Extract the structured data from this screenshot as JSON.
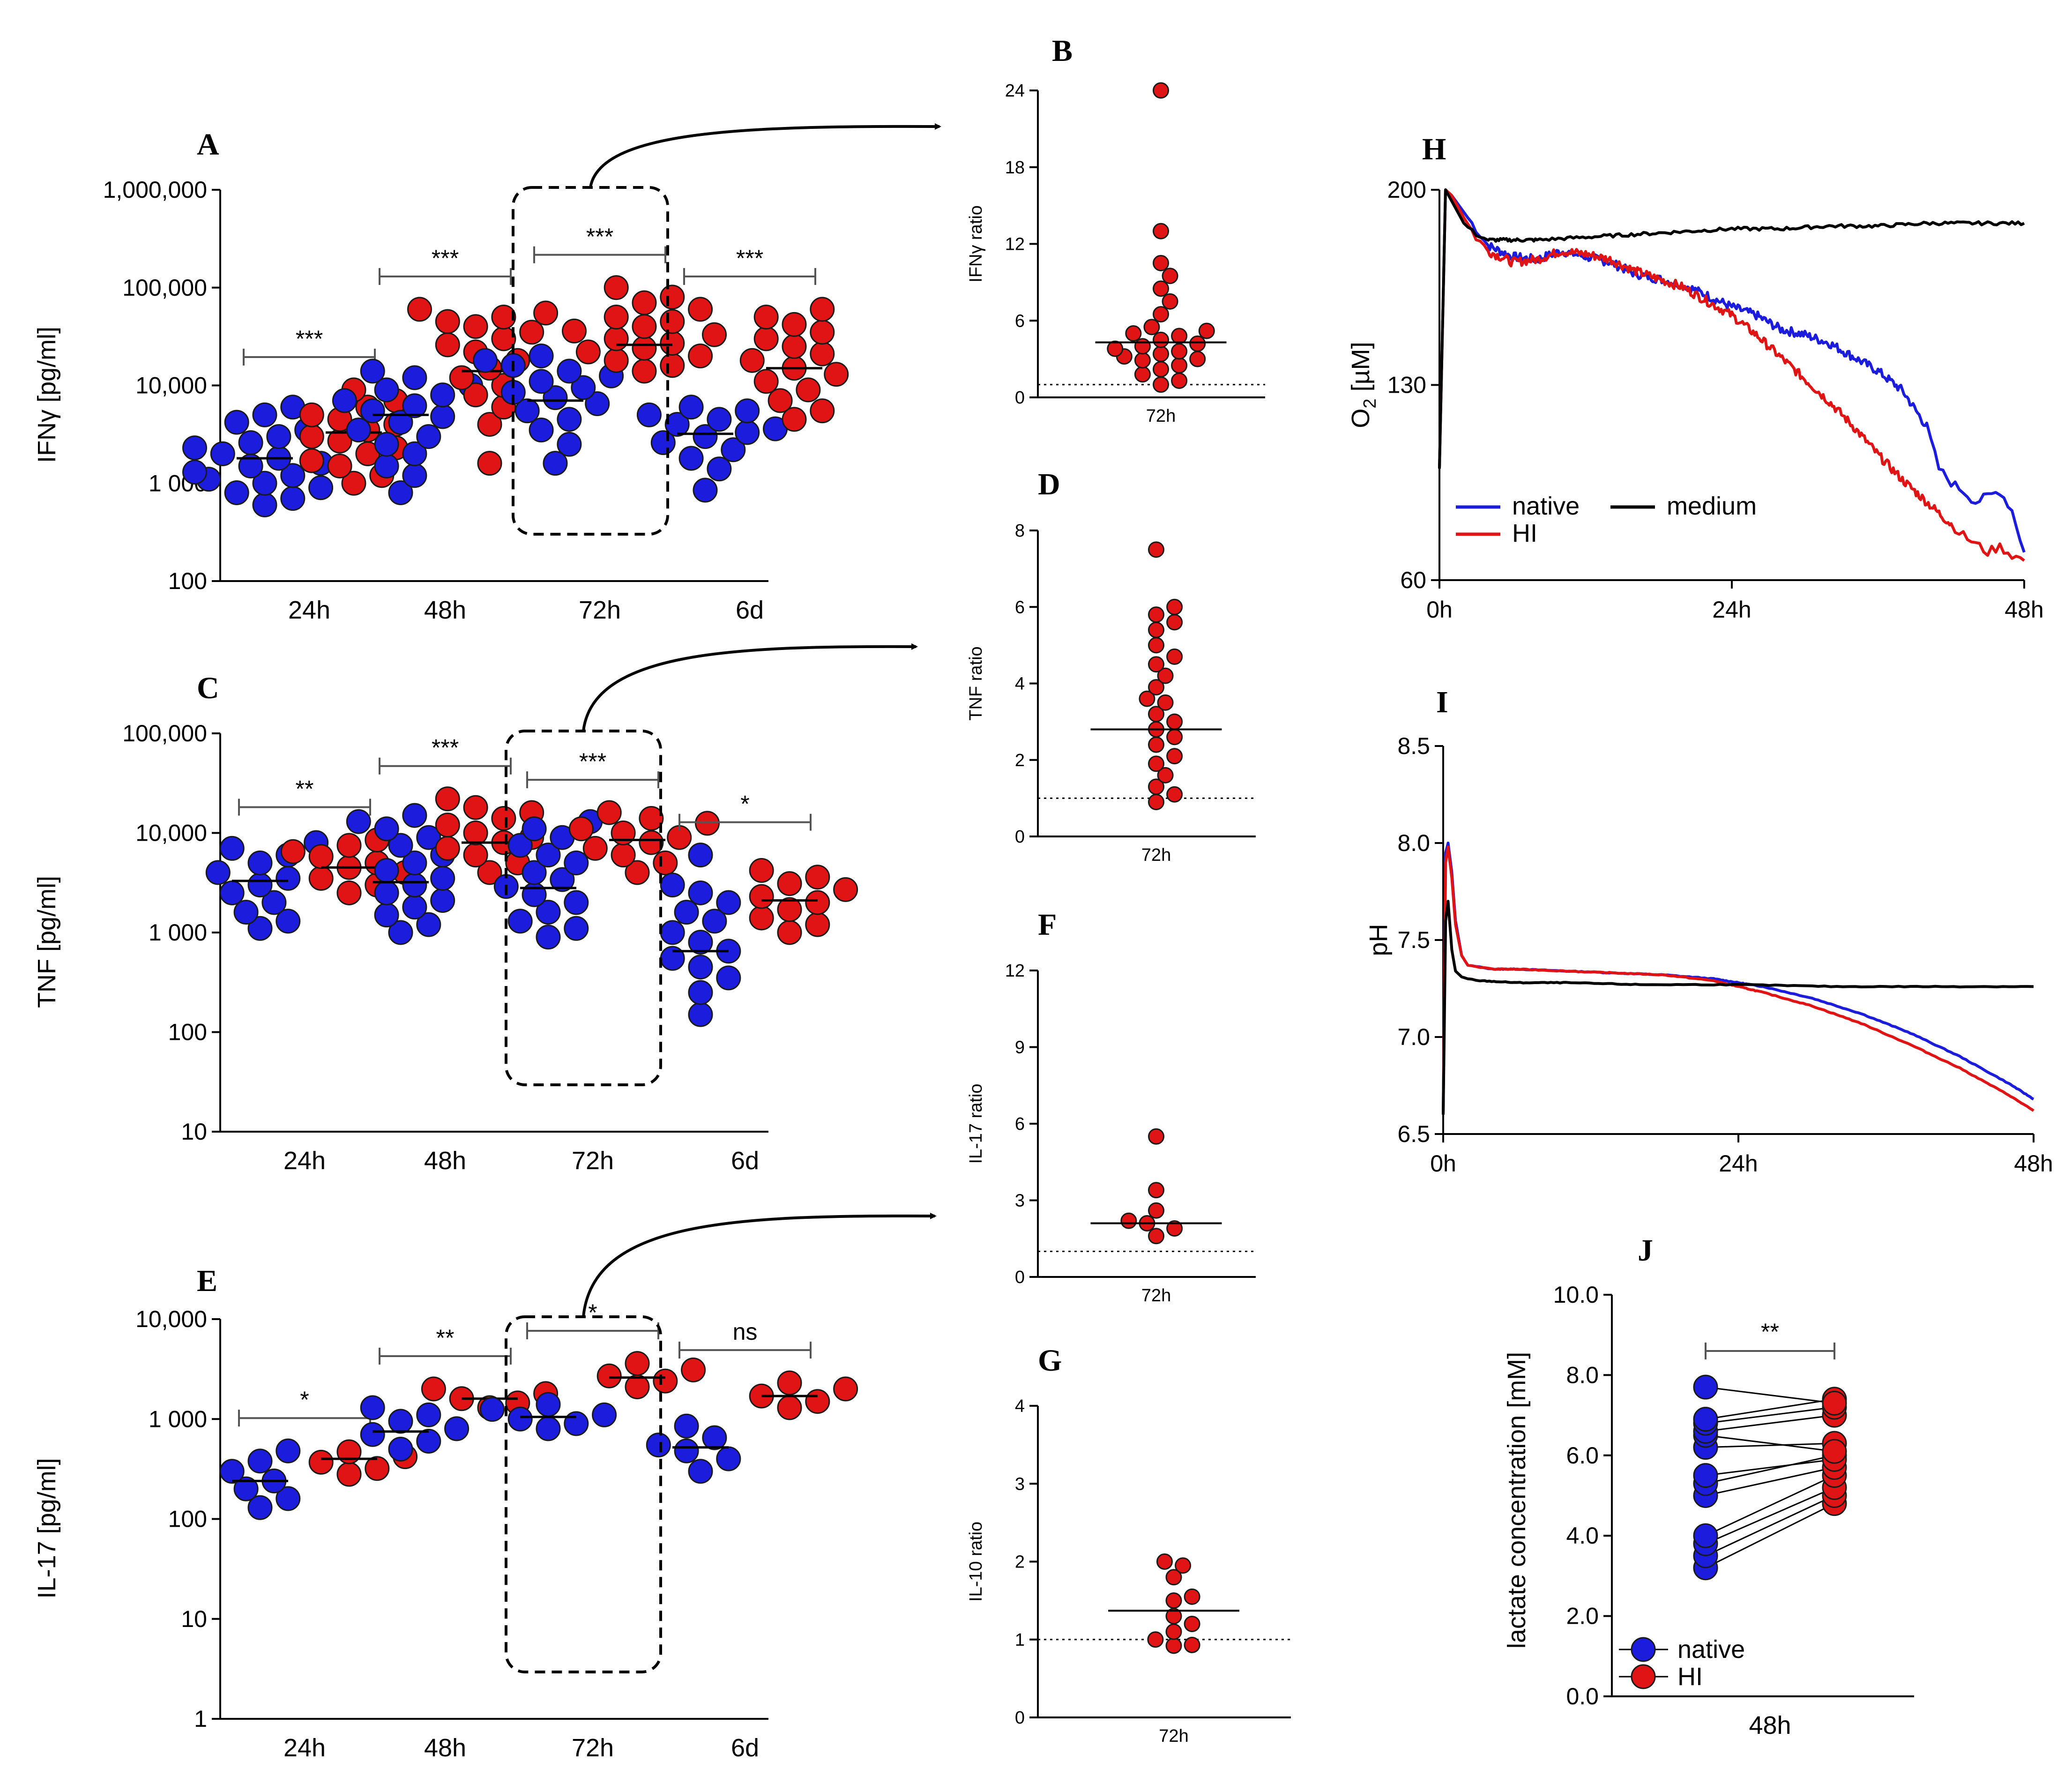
{
  "figure": {
    "colors": {
      "native": "#1c1cdc",
      "HI": "#e01414",
      "medium": "#000000",
      "dot_edge": "#1a1a1a"
    }
  },
  "chart_data": [
    {
      "id": "A",
      "panel_label": "A",
      "type": "scatter",
      "scale": "log",
      "ylabel": "IFNγ [pg/ml]",
      "ylim": [
        100,
        1000000
      ],
      "yticks": [
        100,
        1000,
        10000,
        100000,
        1000000
      ],
      "ytick_labels": [
        "100",
        "1 000",
        "10,000",
        "100,000",
        "1,000,000"
      ],
      "categories": [
        "24h",
        "48h",
        "72h",
        "6d"
      ],
      "series": [
        {
          "name": "native",
          "medians": [
            1800,
            5000,
            7000,
            3200
          ],
          "values": [
            [
              600,
              700,
              800,
              900,
              1000,
              1100,
              1200,
              1300,
              1500,
              1600,
              1800,
              2000,
              2300,
              2600,
              3000,
              3500,
              4200,
              5000,
              6000
            ],
            [
              800,
              1200,
              1500,
              2000,
              2500,
              3000,
              3500,
              4200,
              4800,
              5500,
              6200,
              7000,
              8000,
              9000,
              10000,
              12000,
              14000
            ],
            [
              1600,
              2500,
              3500,
              4500,
              5500,
              6500,
              7500,
              8500,
              9500,
              11000,
              12500,
              14000,
              16000,
              18000,
              20000
            ],
            [
              850,
              1400,
              1800,
              2200,
              2600,
              3000,
              3300,
              3600,
              4000,
              4500,
              5000,
              5500,
              6000
            ]
          ]
        },
        {
          "name": "HI",
          "medians": [
            3300,
            14000,
            26000,
            15000
          ],
          "values": [
            [
              1000,
              1200,
              1500,
              1700,
              2000,
              2300,
              2700,
              3000,
              3500,
              4000,
              4500,
              5000,
              6000,
              7000,
              9000
            ],
            [
              1600,
              4000,
              6000,
              8000,
              10000,
              12000,
              15000,
              18000,
              22000,
              26000,
              30000,
              35000,
              40000,
              45000,
              50000,
              55000,
              60000
            ],
            [
              14000,
              16000,
              18000,
              20000,
              22000,
              24000,
              27000,
              30000,
              33000,
              36000,
              40000,
              45000,
              50000,
              60000,
              70000,
              80000,
              100000
            ],
            [
              4500,
              5500,
              7000,
              9000,
              11000,
              13000,
              15000,
              18000,
              21000,
              25000,
              30000,
              35000,
              42000,
              50000,
              60000
            ]
          ]
        }
      ],
      "significance": [
        "***",
        "***",
        "***",
        "***"
      ]
    },
    {
      "id": "B",
      "panel_label": "B",
      "type": "scatter",
      "scale": "linear",
      "ylabel": "IFNγ ratio",
      "ylim": [
        0,
        24
      ],
      "yticks": [
        0,
        6,
        12,
        18,
        24
      ],
      "ytick_labels": [
        "0",
        "6",
        "12",
        "18",
        "24"
      ],
      "categories": [
        "72h"
      ],
      "median": 4.3,
      "reference": 1,
      "values": [
        1.0,
        1.3,
        1.8,
        2.2,
        2.5,
        2.9,
        3.0,
        3.2,
        3.4,
        3.6,
        3.8,
        4.0,
        4.2,
        4.5,
        4.8,
        5.0,
        5.2,
        5.5,
        6.5,
        7.5,
        8.5,
        9.5,
        10.5,
        13.0,
        24.0
      ]
    },
    {
      "id": "C",
      "panel_label": "C",
      "type": "scatter",
      "scale": "log",
      "ylabel": "TNF [pg/ml]",
      "ylim": [
        10,
        100000
      ],
      "yticks": [
        10,
        100,
        1000,
        10000,
        100000
      ],
      "ytick_labels": [
        "10",
        "100",
        "1 000",
        "10,000",
        "100,000"
      ],
      "categories": [
        "24h",
        "48h",
        "72h",
        "6d"
      ],
      "series": [
        {
          "name": "native",
          "medians": [
            3300,
            3200,
            2800,
            650
          ],
          "values": [
            [
              1100,
              1300,
              1600,
              2000,
              2500,
              3000,
              3500,
              4000,
              5000,
              6000,
              7000,
              8000
            ],
            [
              1000,
              1200,
              1500,
              1800,
              2100,
              2500,
              3000,
              3500,
              4200,
              5000,
              6000,
              7500,
              9000,
              11000,
              13000,
              15000
            ],
            [
              900,
              1100,
              1300,
              1600,
              2000,
              2400,
              2900,
              3400,
              4000,
              5000,
              6000,
              7500,
              9000,
              11000,
              13000
            ],
            [
              150,
              250,
              350,
              450,
              550,
              650,
              800,
              1000,
              1300,
              1600,
              2000,
              2500,
              3000,
              6000
            ]
          ]
        },
        {
          "name": "HI",
          "medians": [
            4500,
            8000,
            8500,
            2100
          ],
          "values": [
            [
              2500,
              3000,
              3500,
              4000,
              4500,
              5000,
              5800,
              6500,
              7500,
              8500
            ],
            [
              4000,
              5000,
              6000,
              7000,
              8000,
              9000,
              10000,
              12000,
              14000,
              16000,
              18000,
              22000
            ],
            [
              4000,
              5000,
              6000,
              7000,
              8000,
              9000,
              10000,
              11000,
              12500,
              14000,
              16000
            ],
            [
              1000,
              1200,
              1400,
              1700,
              2000,
              2300,
              2700,
              3100,
              3600,
              4200
            ]
          ]
        }
      ],
      "significance": [
        "**",
        "***",
        "***",
        "*"
      ]
    },
    {
      "id": "D",
      "panel_label": "D",
      "type": "scatter",
      "scale": "linear",
      "ylabel": "TNF ratio",
      "ylim": [
        0,
        8
      ],
      "yticks": [
        0,
        2,
        4,
        6,
        8
      ],
      "ytick_labels": [
        "0",
        "2",
        "4",
        "6",
        "8"
      ],
      "categories": [
        "72h"
      ],
      "median": 2.8,
      "reference": 1,
      "values": [
        0.9,
        1.1,
        1.3,
        1.6,
        1.9,
        2.1,
        2.4,
        2.6,
        2.8,
        3.0,
        3.2,
        3.5,
        3.6,
        3.9,
        4.2,
        4.5,
        4.7,
        5.0,
        5.4,
        5.6,
        5.8,
        6.0,
        7.5
      ]
    },
    {
      "id": "E",
      "panel_label": "E",
      "type": "scatter",
      "scale": "log",
      "ylabel": "IL-17 [pg/ml]",
      "ylim": [
        1,
        10000
      ],
      "yticks": [
        1,
        10,
        100,
        1000,
        10000
      ],
      "ytick_labels": [
        "1",
        "10",
        "100",
        "1 000",
        "10,000"
      ],
      "categories": [
        "24h",
        "48h",
        "72h",
        "6d"
      ],
      "series": [
        {
          "name": "native",
          "medians": [
            240,
            750,
            1050,
            520
          ],
          "values": [
            [
              130,
              160,
              200,
              240,
              300,
              380,
              480
            ],
            [
              500,
              600,
              700,
              800,
              950,
              1100,
              1300
            ],
            [
              800,
              900,
              1000,
              1100,
              1250,
              1400
            ],
            [
              300,
              400,
              480,
              550,
              650,
              850
            ]
          ]
        },
        {
          "name": "HI",
          "medians": [
            400,
            1600,
            2600,
            1700
          ],
          "values": [
            [
              280,
              320,
              370,
              420,
              470
            ],
            [
              1300,
              1450,
              1600,
              1800,
              2000
            ],
            [
              2100,
              2400,
              2700,
              3100,
              3600
            ],
            [
              1300,
              1500,
              1700,
              2000,
              2300
            ]
          ]
        }
      ],
      "significance": [
        "*",
        "**",
        "*",
        "ns"
      ]
    },
    {
      "id": "F",
      "panel_label": "F",
      "type": "scatter",
      "scale": "linear",
      "ylabel": "IL-17 ratio",
      "ylim": [
        0,
        12
      ],
      "yticks": [
        0,
        3,
        6,
        9,
        12
      ],
      "ytick_labels": [
        "0",
        "3",
        "6",
        "9",
        "12"
      ],
      "categories": [
        "72h"
      ],
      "median": 2.1,
      "reference": 1,
      "values": [
        1.6,
        1.9,
        2.1,
        2.2,
        2.6,
        3.4,
        5.5
      ]
    },
    {
      "id": "G",
      "panel_label": "G",
      "type": "scatter",
      "scale": "linear",
      "ylabel": "IL-10 ratio",
      "ylim": [
        0,
        4
      ],
      "yticks": [
        0,
        1,
        2,
        3,
        4
      ],
      "ytick_labels": [
        "0",
        "1",
        "2",
        "3",
        "4"
      ],
      "categories": [
        "72h"
      ],
      "median": 1.37,
      "reference": 1,
      "values": [
        0.92,
        0.93,
        1.0,
        1.1,
        1.2,
        1.3,
        1.5,
        1.55,
        1.8,
        1.95,
        2.0
      ]
    },
    {
      "id": "H",
      "panel_label": "H",
      "type": "line",
      "ylabel": "O2 [µM]",
      "ylim": [
        60,
        200
      ],
      "yticks": [
        60,
        130,
        200
      ],
      "ytick_labels": [
        "60",
        "130",
        "200"
      ],
      "xlim": [
        0,
        48
      ],
      "xticks": [
        0,
        24,
        48
      ],
      "xtick_labels": [
        "0h",
        "24h",
        "48h"
      ],
      "series": [
        {
          "name": "native",
          "color": "#1c1cdc",
          "x": [
            0,
            0.5,
            1,
            2,
            3,
            4,
            6,
            8,
            10,
            12,
            14,
            16,
            18,
            20,
            22,
            24,
            26,
            28,
            30,
            32,
            34,
            36,
            38,
            40,
            41,
            42,
            43,
            44,
            45,
            46,
            47,
            48
          ],
          "y": [
            100,
            200,
            198,
            192,
            186,
            180,
            176,
            175,
            178,
            176,
            174,
            170,
            168,
            166,
            162,
            158,
            155,
            150,
            148,
            145,
            140,
            135,
            128,
            115,
            100,
            95,
            92,
            88,
            90,
            92,
            85,
            70
          ]
        },
        {
          "name": "HI",
          "color": "#e01414",
          "x": [
            0,
            0.5,
            1,
            2,
            3,
            4,
            6,
            8,
            10,
            12,
            14,
            16,
            18,
            20,
            22,
            24,
            26,
            28,
            30,
            32,
            34,
            36,
            38,
            40,
            42,
            43,
            44,
            45,
            46,
            47,
            48
          ],
          "y": [
            100,
            200,
            198,
            190,
            183,
            178,
            174,
            175,
            178,
            177,
            175,
            171,
            168,
            165,
            160,
            155,
            148,
            140,
            132,
            124,
            115,
            105,
            96,
            88,
            80,
            76,
            73,
            70,
            72,
            69,
            67
          ]
        },
        {
          "name": "medium",
          "color": "#000000",
          "x": [
            0,
            0.5,
            1,
            2,
            3,
            4,
            6,
            8,
            12,
            16,
            20,
            24,
            28,
            32,
            36,
            40,
            44,
            48
          ],
          "y": [
            100,
            200,
            196,
            188,
            184,
            182,
            182,
            182,
            183,
            184,
            185,
            186,
            186,
            187,
            187,
            188,
            188,
            188
          ]
        }
      ],
      "legend": [
        "native",
        "medium",
        "HI"
      ]
    },
    {
      "id": "I",
      "panel_label": "I",
      "type": "line",
      "ylabel": "pH",
      "ylim": [
        6.5,
        8.5
      ],
      "yticks": [
        6.5,
        7.0,
        7.5,
        8.0,
        8.5
      ],
      "ytick_labels": [
        "6.5",
        "7.0",
        "7.5",
        "8.0",
        "8.5"
      ],
      "xlim": [
        0,
        48
      ],
      "xticks": [
        0,
        24,
        48
      ],
      "xtick_labels": [
        "0h",
        "24h",
        "48h"
      ],
      "series": [
        {
          "name": "native",
          "color": "#1c1cdc",
          "x": [
            0,
            0.2,
            0.4,
            0.7,
            1,
            1.5,
            2,
            3,
            4,
            6,
            10,
            14,
            18,
            22,
            24,
            26,
            30,
            34,
            38,
            42,
            46,
            48
          ],
          "y": [
            6.6,
            7.95,
            8.0,
            7.85,
            7.6,
            7.42,
            7.37,
            7.36,
            7.35,
            7.35,
            7.34,
            7.33,
            7.32,
            7.3,
            7.28,
            7.26,
            7.2,
            7.12,
            7.02,
            6.9,
            6.76,
            6.68
          ]
        },
        {
          "name": "HI",
          "color": "#e01414",
          "x": [
            0,
            0.2,
            0.4,
            0.7,
            1,
            1.5,
            2,
            3,
            4,
            6,
            10,
            14,
            18,
            22,
            24,
            26,
            30,
            34,
            38,
            42,
            46,
            48
          ],
          "y": [
            6.6,
            7.9,
            7.98,
            7.82,
            7.58,
            7.42,
            7.37,
            7.36,
            7.35,
            7.35,
            7.34,
            7.33,
            7.32,
            7.29,
            7.26,
            7.23,
            7.16,
            7.07,
            6.96,
            6.84,
            6.7,
            6.62
          ]
        },
        {
          "name": "medium",
          "color": "#000000",
          "x": [
            0,
            0.2,
            0.4,
            0.7,
            1,
            1.5,
            2,
            3,
            6,
            10,
            16,
            24,
            32,
            40,
            48
          ],
          "y": [
            6.6,
            7.6,
            7.7,
            7.45,
            7.34,
            7.31,
            7.3,
            7.29,
            7.28,
            7.28,
            7.27,
            7.27,
            7.26,
            7.26,
            7.26
          ]
        }
      ]
    },
    {
      "id": "J",
      "panel_label": "J",
      "type": "scatter-paired",
      "ylabel": "lactate concentration [mM]",
      "ylim": [
        0,
        10
      ],
      "yticks": [
        0,
        2,
        4,
        6,
        8,
        10
      ],
      "ytick_labels": [
        "0.0",
        "2.0",
        "4.0",
        "6.0",
        "8.0",
        "10.0"
      ],
      "xlabel": "48h",
      "pairs": [
        [
          3.2,
          4.8
        ],
        [
          3.5,
          5.0
        ],
        [
          3.8,
          5.2
        ],
        [
          4.0,
          5.5
        ],
        [
          5.0,
          5.7
        ],
        [
          5.3,
          6.0
        ],
        [
          5.5,
          5.9
        ],
        [
          6.2,
          6.3
        ],
        [
          6.5,
          6.1
        ],
        [
          6.6,
          7.0
        ],
        [
          6.8,
          7.2
        ],
        [
          6.9,
          7.4
        ],
        [
          7.7,
          7.3
        ]
      ],
      "significance": "**",
      "legend": [
        "native",
        "HI"
      ]
    }
  ]
}
